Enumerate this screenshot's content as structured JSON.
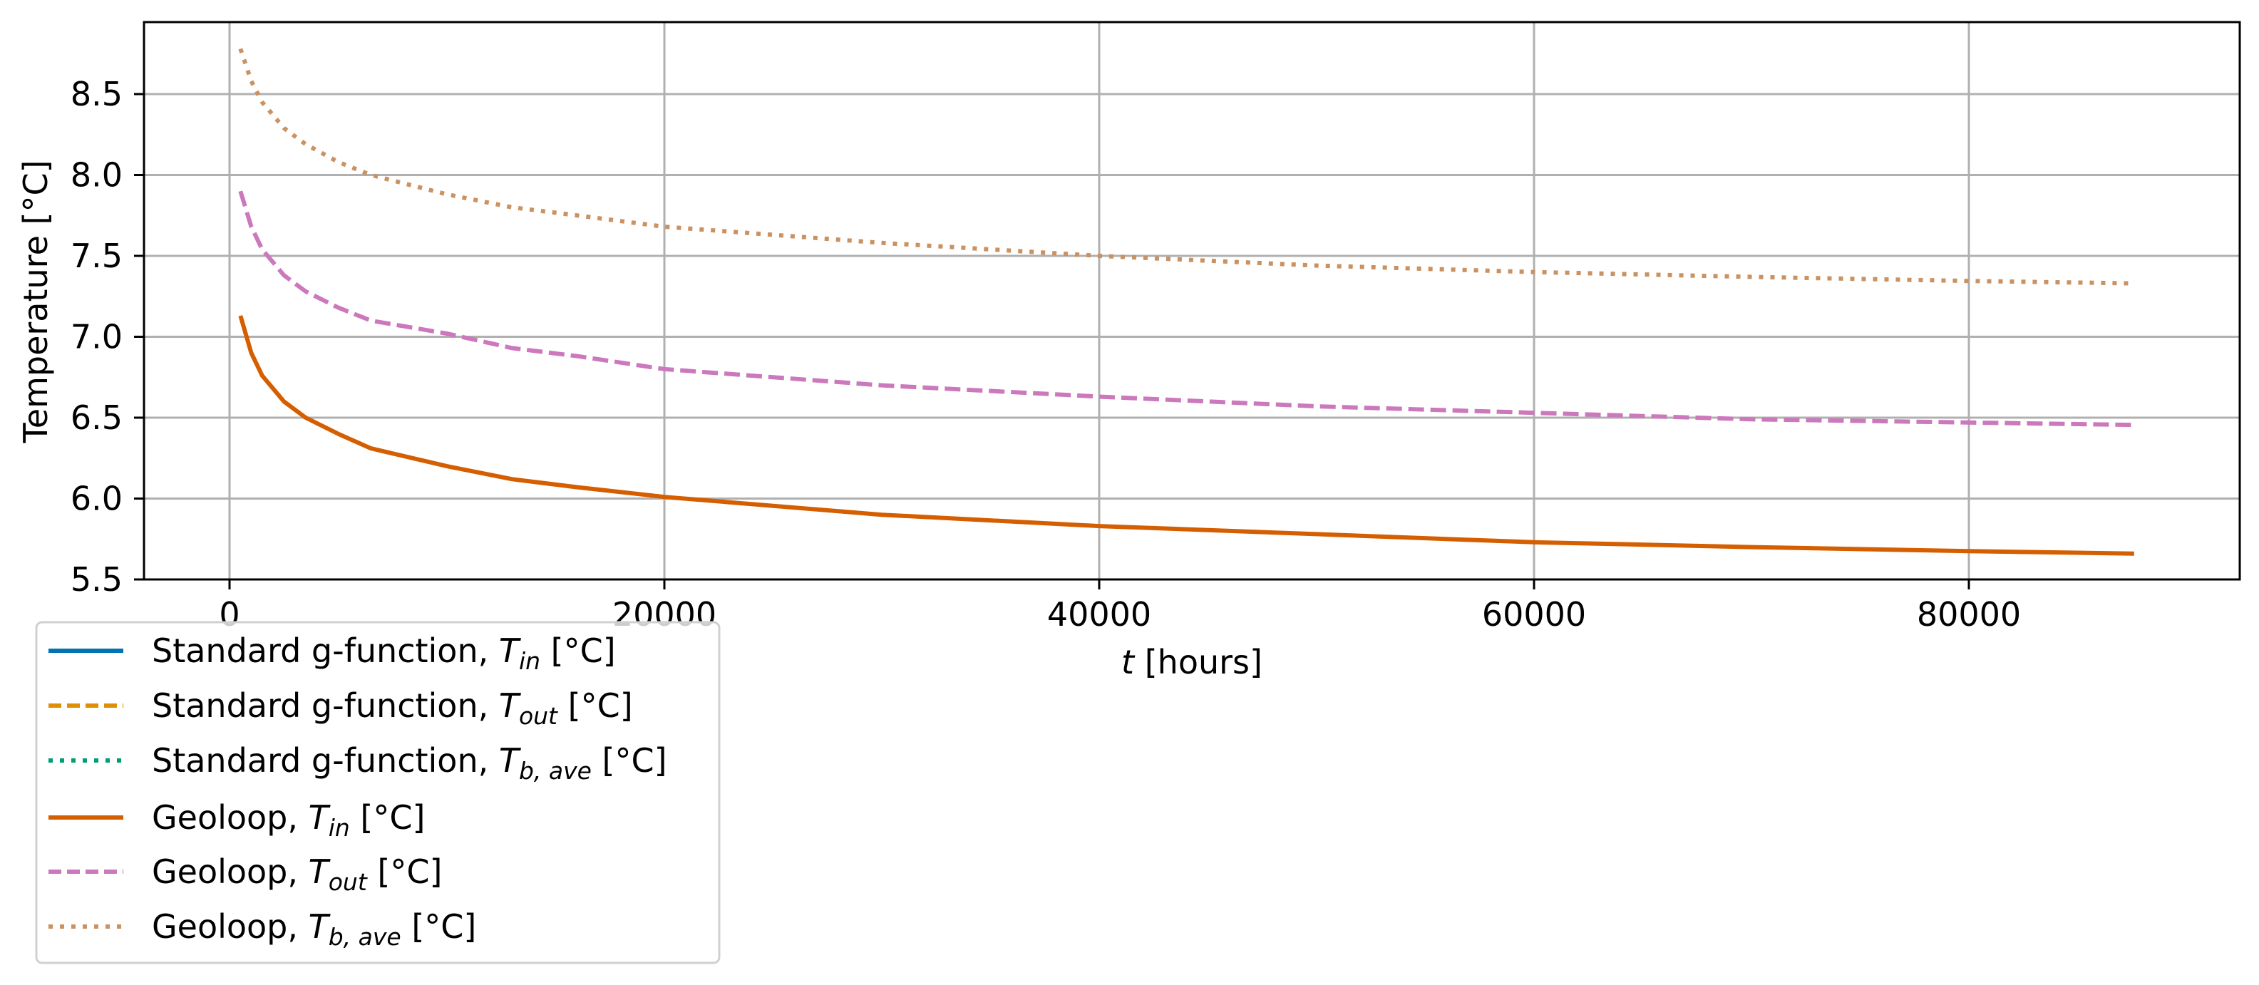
{
  "chart_data": {
    "type": "line",
    "title": "",
    "xlabel": "t [hours]",
    "ylabel": "Temperature [°C]",
    "xlim": [
      -4000,
      92500
    ],
    "ylim": [
      5.5,
      8.9
    ],
    "grid": true,
    "legend_position": "below-left (outside axes)",
    "x_ticks": [
      0,
      20000,
      40000,
      60000,
      80000
    ],
    "x_tick_labels": [
      "0",
      "20000",
      "40000",
      "60000",
      "80000"
    ],
    "y_ticks": [
      5.5,
      6.0,
      6.5,
      7.0,
      7.5,
      8.0,
      8.5
    ],
    "y_tick_labels": [
      "5.5",
      "6.0",
      "6.5",
      "7.0",
      "7.5",
      "8.0",
      "8.5"
    ],
    "x": [
      500,
      1000,
      1500,
      2500,
      3500,
      5000,
      6500,
      10000,
      13000,
      16000,
      20000,
      30000,
      40000,
      50000,
      60000,
      70000,
      80000,
      87600
    ],
    "series": [
      {
        "name": "Standard g-function, T_in [°C]",
        "color": "#0173b2",
        "linestyle": "solid",
        "values": []
      },
      {
        "name": "Standard g-function, T_out [°C]",
        "color": "#de8f05",
        "linestyle": "dashed",
        "values": []
      },
      {
        "name": "Standard g-function, T_b,ave [°C]",
        "color": "#029e73",
        "linestyle": "dotted",
        "values": []
      },
      {
        "name": "Geoloop, T_in [°C]",
        "color": "#d55e00",
        "linestyle": "solid",
        "values": [
          7.13,
          6.9,
          6.76,
          6.6,
          6.5,
          6.4,
          6.31,
          6.2,
          6.12,
          6.07,
          6.01,
          5.9,
          5.83,
          5.78,
          5.73,
          5.7,
          5.675,
          5.66
        ]
      },
      {
        "name": "Geoloop, T_out [°C]",
        "color": "#cc78bc",
        "linestyle": "dashed",
        "values": [
          7.9,
          7.68,
          7.54,
          7.38,
          7.28,
          7.18,
          7.1,
          7.02,
          6.93,
          6.88,
          6.8,
          6.7,
          6.63,
          6.57,
          6.53,
          6.49,
          6.47,
          6.455
        ]
      },
      {
        "name": "Geoloop, T_b,ave [°C]",
        "color": "#ca9161",
        "linestyle": "dotted",
        "values": [
          8.78,
          8.58,
          8.45,
          8.29,
          8.19,
          8.08,
          8.0,
          7.88,
          7.8,
          7.75,
          7.68,
          7.58,
          7.5,
          7.44,
          7.4,
          7.37,
          7.345,
          7.33
        ]
      }
    ]
  },
  "legend": {
    "items": [
      {
        "prefix": "Standard g-function, ",
        "symbol": "T",
        "sub": "in",
        "suffix": " [°C]",
        "color": "#0173b2",
        "dash": ""
      },
      {
        "prefix": "Standard g-function, ",
        "symbol": "T",
        "sub": "out",
        "suffix": " [°C]",
        "color": "#de8f05",
        "dash": "18,8"
      },
      {
        "prefix": "Standard g-function, ",
        "symbol": "T",
        "sub": "b, ave",
        "suffix": " [°C]",
        "color": "#029e73",
        "dash": "6,10"
      },
      {
        "prefix": "Geoloop, ",
        "symbol": "T",
        "sub": "in",
        "suffix": " [°C]",
        "color": "#d55e00",
        "dash": ""
      },
      {
        "prefix": "Geoloop, ",
        "symbol": "T",
        "sub": "out",
        "suffix": " [°C]",
        "color": "#cc78bc",
        "dash": "18,8"
      },
      {
        "prefix": "Geoloop, ",
        "symbol": "T",
        "sub": "b, ave",
        "suffix": " [°C]",
        "color": "#ca9161",
        "dash": "6,10"
      }
    ]
  },
  "axes": {
    "xlabel_italic": "t",
    "xlabel_rest": " [hours]",
    "ylabel": "Temperature [°C]"
  }
}
